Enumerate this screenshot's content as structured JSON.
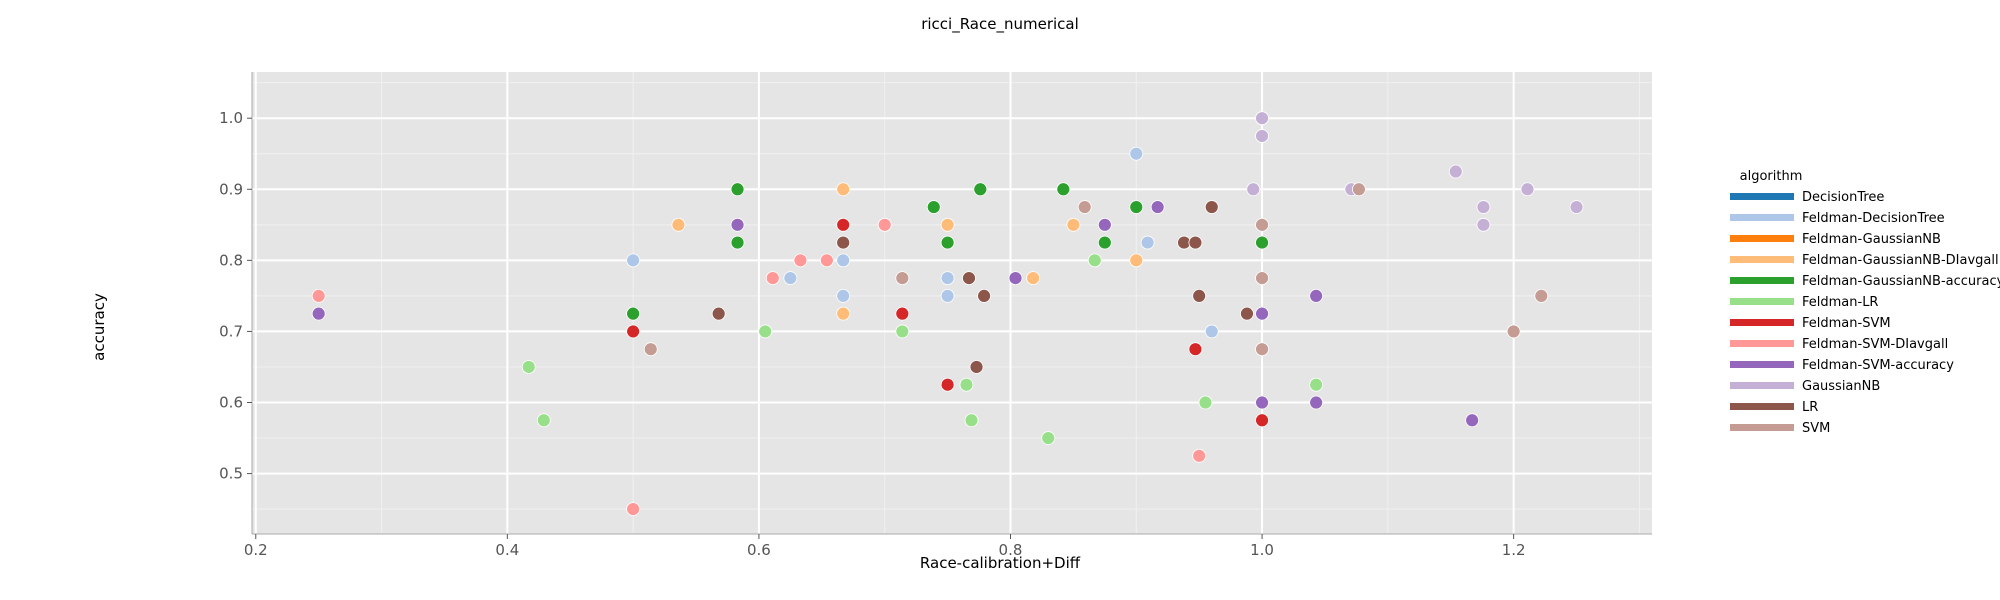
{
  "chart_data": {
    "type": "scatter",
    "title": "ricci_Race_numerical",
    "xlabel": "Race-calibration+Diff",
    "ylabel": "accuracy",
    "xlim": [
      0.197,
      1.31
    ],
    "ylim": [
      0.415,
      1.065
    ],
    "x_ticks": [
      0.2,
      0.4,
      0.6,
      0.8,
      1.0,
      1.2
    ],
    "x_tick_labels": [
      "0.2",
      "0.4",
      "0.6",
      "0.8",
      "1.0",
      "1.2"
    ],
    "y_ticks": [
      0.5,
      0.6,
      0.7,
      0.8,
      0.9,
      1.0
    ],
    "y_tick_labels": [
      "0.5",
      "0.6",
      "0.7",
      "0.8",
      "0.9",
      "1.0"
    ],
    "grid": true,
    "background": "#e5e5e5",
    "legend_position": "right",
    "legend_title": "algorithm",
    "series": [
      {
        "name": "DecisionTree",
        "color": "#1f77b4",
        "points": []
      },
      {
        "name": "Feldman-DecisionTree",
        "color": "#aec7e8",
        "points": [
          [
            0.5,
            0.8
          ],
          [
            0.625,
            0.775
          ],
          [
            0.667,
            0.8
          ],
          [
            0.667,
            0.75
          ],
          [
            0.75,
            0.775
          ],
          [
            0.75,
            0.75
          ],
          [
            0.9,
            0.95
          ],
          [
            0.909,
            0.825
          ],
          [
            0.96,
            0.7
          ],
          [
            1.0,
            0.975
          ],
          [
            1.0,
            1.0
          ]
        ]
      },
      {
        "name": "Feldman-GaussianNB",
        "color": "#ff7f0e",
        "points": []
      },
      {
        "name": "Feldman-GaussianNB-DIavgall",
        "color": "#ffbb78",
        "points": [
          [
            0.536,
            0.85
          ],
          [
            0.667,
            0.9
          ],
          [
            0.667,
            0.725
          ],
          [
            0.75,
            0.85
          ],
          [
            0.818,
            0.775
          ],
          [
            0.85,
            0.85
          ],
          [
            0.9,
            0.8
          ]
        ]
      },
      {
        "name": "Feldman-GaussianNB-accuracy",
        "color": "#2ca02c",
        "points": [
          [
            0.5,
            0.725
          ],
          [
            0.583,
            0.9
          ],
          [
            0.583,
            0.825
          ],
          [
            0.739,
            0.875
          ],
          [
            0.75,
            0.825
          ],
          [
            0.776,
            0.9
          ],
          [
            0.842,
            0.9
          ],
          [
            0.875,
            0.825
          ],
          [
            0.9,
            0.875
          ],
          [
            1.0,
            0.825
          ]
        ]
      },
      {
        "name": "Feldman-LR",
        "color": "#98df8a",
        "points": [
          [
            0.417,
            0.65
          ],
          [
            0.429,
            0.575
          ],
          [
            0.605,
            0.7
          ],
          [
            0.714,
            0.7
          ],
          [
            0.765,
            0.625
          ],
          [
            0.769,
            0.575
          ],
          [
            0.83,
            0.55
          ],
          [
            0.867,
            0.8
          ],
          [
            0.955,
            0.6
          ],
          [
            1.043,
            0.625
          ]
        ]
      },
      {
        "name": "Feldman-SVM",
        "color": "#d62728",
        "points": [
          [
            0.5,
            0.7
          ],
          [
            0.667,
            0.85
          ],
          [
            0.7,
            0.85
          ],
          [
            0.714,
            0.725
          ],
          [
            0.75,
            0.625
          ],
          [
            0.947,
            0.675
          ],
          [
            1.0,
            0.575
          ]
        ]
      },
      {
        "name": "Feldman-SVM-DIavgall",
        "color": "#ff9896",
        "points": [
          [
            0.25,
            0.75
          ],
          [
            0.5,
            0.45
          ],
          [
            0.611,
            0.775
          ],
          [
            0.633,
            0.8
          ],
          [
            0.654,
            0.8
          ],
          [
            0.7,
            0.85
          ],
          [
            0.95,
            0.525
          ]
        ]
      },
      {
        "name": "Feldman-SVM-accuracy",
        "color": "#9467bd",
        "points": [
          [
            0.25,
            0.725
          ],
          [
            0.583,
            0.85
          ],
          [
            0.804,
            0.775
          ],
          [
            0.875,
            0.85
          ],
          [
            0.917,
            0.875
          ],
          [
            1.0,
            0.725
          ],
          [
            1.0,
            0.6
          ],
          [
            1.043,
            0.75
          ],
          [
            1.043,
            0.6
          ],
          [
            1.167,
            0.575
          ]
        ]
      },
      {
        "name": "GaussianNB",
        "color": "#c5b0d5",
        "points": [
          [
            0.993,
            0.9
          ],
          [
            1.0,
            1.0
          ],
          [
            1.0,
            0.975
          ],
          [
            1.071,
            0.9
          ],
          [
            1.154,
            0.925
          ],
          [
            1.176,
            0.875
          ],
          [
            1.176,
            0.85
          ],
          [
            1.211,
            0.9
          ],
          [
            1.25,
            0.875
          ]
        ]
      },
      {
        "name": "LR",
        "color": "#8c564b",
        "points": [
          [
            0.568,
            0.725
          ],
          [
            0.667,
            0.825
          ],
          [
            0.767,
            0.775
          ],
          [
            0.773,
            0.65
          ],
          [
            0.779,
            0.75
          ],
          [
            0.938,
            0.825
          ],
          [
            0.947,
            0.825
          ],
          [
            0.95,
            0.75
          ],
          [
            0.96,
            0.875
          ],
          [
            0.988,
            0.725
          ]
        ]
      },
      {
        "name": "SVM",
        "color": "#c49c94",
        "points": [
          [
            0.514,
            0.675
          ],
          [
            0.714,
            0.775
          ],
          [
            0.859,
            0.875
          ],
          [
            1.0,
            0.85
          ],
          [
            1.0,
            0.775
          ],
          [
            1.0,
            0.675
          ],
          [
            1.077,
            0.9
          ],
          [
            1.2,
            0.7
          ],
          [
            1.222,
            0.75
          ]
        ]
      }
    ]
  }
}
